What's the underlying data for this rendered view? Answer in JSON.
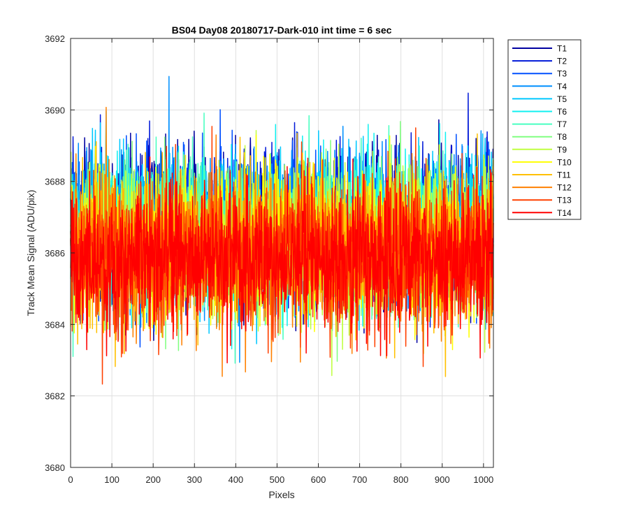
{
  "chart_data": {
    "type": "line",
    "title": "BS04 Day08 20180717-Dark-010 int time = 6 sec",
    "xlabel": "Pixels",
    "ylabel": "Track Mean Signal (ADU/pix)",
    "xlim": [
      0,
      1024
    ],
    "ylim": [
      3680,
      3692
    ],
    "xticks": [
      0,
      100,
      200,
      300,
      400,
      500,
      600,
      700,
      800,
      900,
      1000
    ],
    "yticks": [
      3680,
      3682,
      3684,
      3686,
      3688,
      3690,
      3692
    ],
    "grid": true,
    "legend_position": "outside-top-right",
    "n_points": 1024,
    "series": [
      {
        "name": "T1",
        "color": "#0000a0",
        "mean": 3686.8,
        "std": 1.05
      },
      {
        "name": "T2",
        "color": "#0018d8",
        "mean": 3686.75,
        "std": 1.05
      },
      {
        "name": "T3",
        "color": "#0050ff",
        "mean": 3686.7,
        "std": 1.05
      },
      {
        "name": "T4",
        "color": "#0090ff",
        "mean": 3686.65,
        "std": 1.05
      },
      {
        "name": "T5",
        "color": "#00c8ff",
        "mean": 3686.6,
        "std": 1.05
      },
      {
        "name": "T6",
        "color": "#10f0f0",
        "mean": 3686.55,
        "std": 1.05
      },
      {
        "name": "T7",
        "color": "#48ffc0",
        "mean": 3686.5,
        "std": 1.05
      },
      {
        "name": "T8",
        "color": "#80ff80",
        "mean": 3686.4,
        "std": 1.05
      },
      {
        "name": "T9",
        "color": "#c0ff40",
        "mean": 3686.3,
        "std": 1.05
      },
      {
        "name": "T10",
        "color": "#ffff00",
        "mean": 3686.2,
        "std": 1.05
      },
      {
        "name": "T11",
        "color": "#ffc000",
        "mean": 3686.1,
        "std": 1.05
      },
      {
        "name": "T12",
        "color": "#ff8000",
        "mean": 3686.0,
        "std": 1.05
      },
      {
        "name": "T13",
        "color": "#ff4000",
        "mean": 3685.9,
        "std": 1.05
      },
      {
        "name": "T14",
        "color": "#ff0000",
        "mean": 3685.8,
        "std": 1.05
      }
    ]
  }
}
